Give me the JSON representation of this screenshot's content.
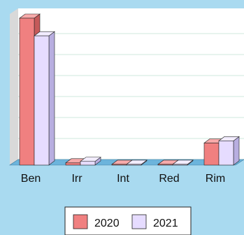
{
  "chart_data": {
    "type": "bar",
    "categories": [
      "Ben",
      "Irr",
      "Int",
      "Red",
      "Rim"
    ],
    "series": [
      {
        "name": "2020",
        "values": [
          100,
          1.5,
          0.5,
          0.5,
          15
        ]
      },
      {
        "name": "2021",
        "values": [
          88,
          2.5,
          0.5,
          0.5,
          16.5
        ]
      }
    ],
    "ylim": [
      0,
      100
    ],
    "grid": true,
    "legend_position": "bottom",
    "style": "3d",
    "colors": {
      "background": "#a9daf0",
      "plot_back": "#ffffff",
      "side_wall": "#d9d9d9",
      "floor": "#6cb4dc",
      "grid": "#cfe9dc",
      "series": [
        "#f08080",
        "#e6dcff"
      ],
      "series_side": [
        "#c55a5a",
        "#b8aee0"
      ],
      "series_top": [
        "#f7aaaa",
        "#f2ecff"
      ]
    }
  }
}
